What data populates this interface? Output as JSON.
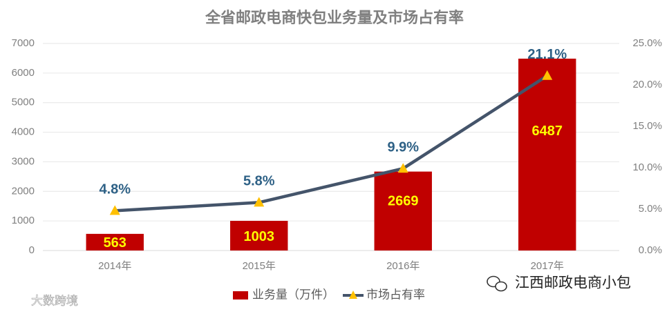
{
  "chart_data": {
    "type": "bar",
    "title": "全省邮政电商快包业务量及市场占有率",
    "categories": [
      "2014年",
      "2015年",
      "2016年",
      "2017年"
    ],
    "series": [
      {
        "name": "业务量（万件）",
        "type": "bar",
        "color": "#c00000",
        "label_color": "#ffff00",
        "values": [
          563,
          1003,
          2669,
          6487
        ]
      },
      {
        "name": "市场占有率",
        "type": "line",
        "axis": "y2",
        "color": "#44546a",
        "marker_color": "#ffc000",
        "label_color": "#2e6186",
        "values": [
          4.8,
          5.8,
          9.9,
          21.1
        ],
        "value_labels": [
          "4.8%",
          "5.8%",
          "9.9%",
          "21.1%"
        ]
      }
    ],
    "ylim": [
      0,
      7000
    ],
    "yticks": [
      0,
      1000,
      2000,
      3000,
      4000,
      5000,
      6000,
      7000
    ],
    "y2lim": [
      0,
      25
    ],
    "y2ticks": [
      {
        "value": 0,
        "label": "0.0%"
      },
      {
        "value": 5,
        "label": "5.0%"
      },
      {
        "value": 10,
        "label": "10.0%"
      },
      {
        "value": 15,
        "label": "15.0%"
      },
      {
        "value": 20,
        "label": "20.0%"
      },
      {
        "value": 25,
        "label": "25.0%"
      }
    ],
    "grid": true,
    "legend": "bottom"
  },
  "watermarks": [
    "江西邮政电商小包",
    "大数跨境"
  ]
}
